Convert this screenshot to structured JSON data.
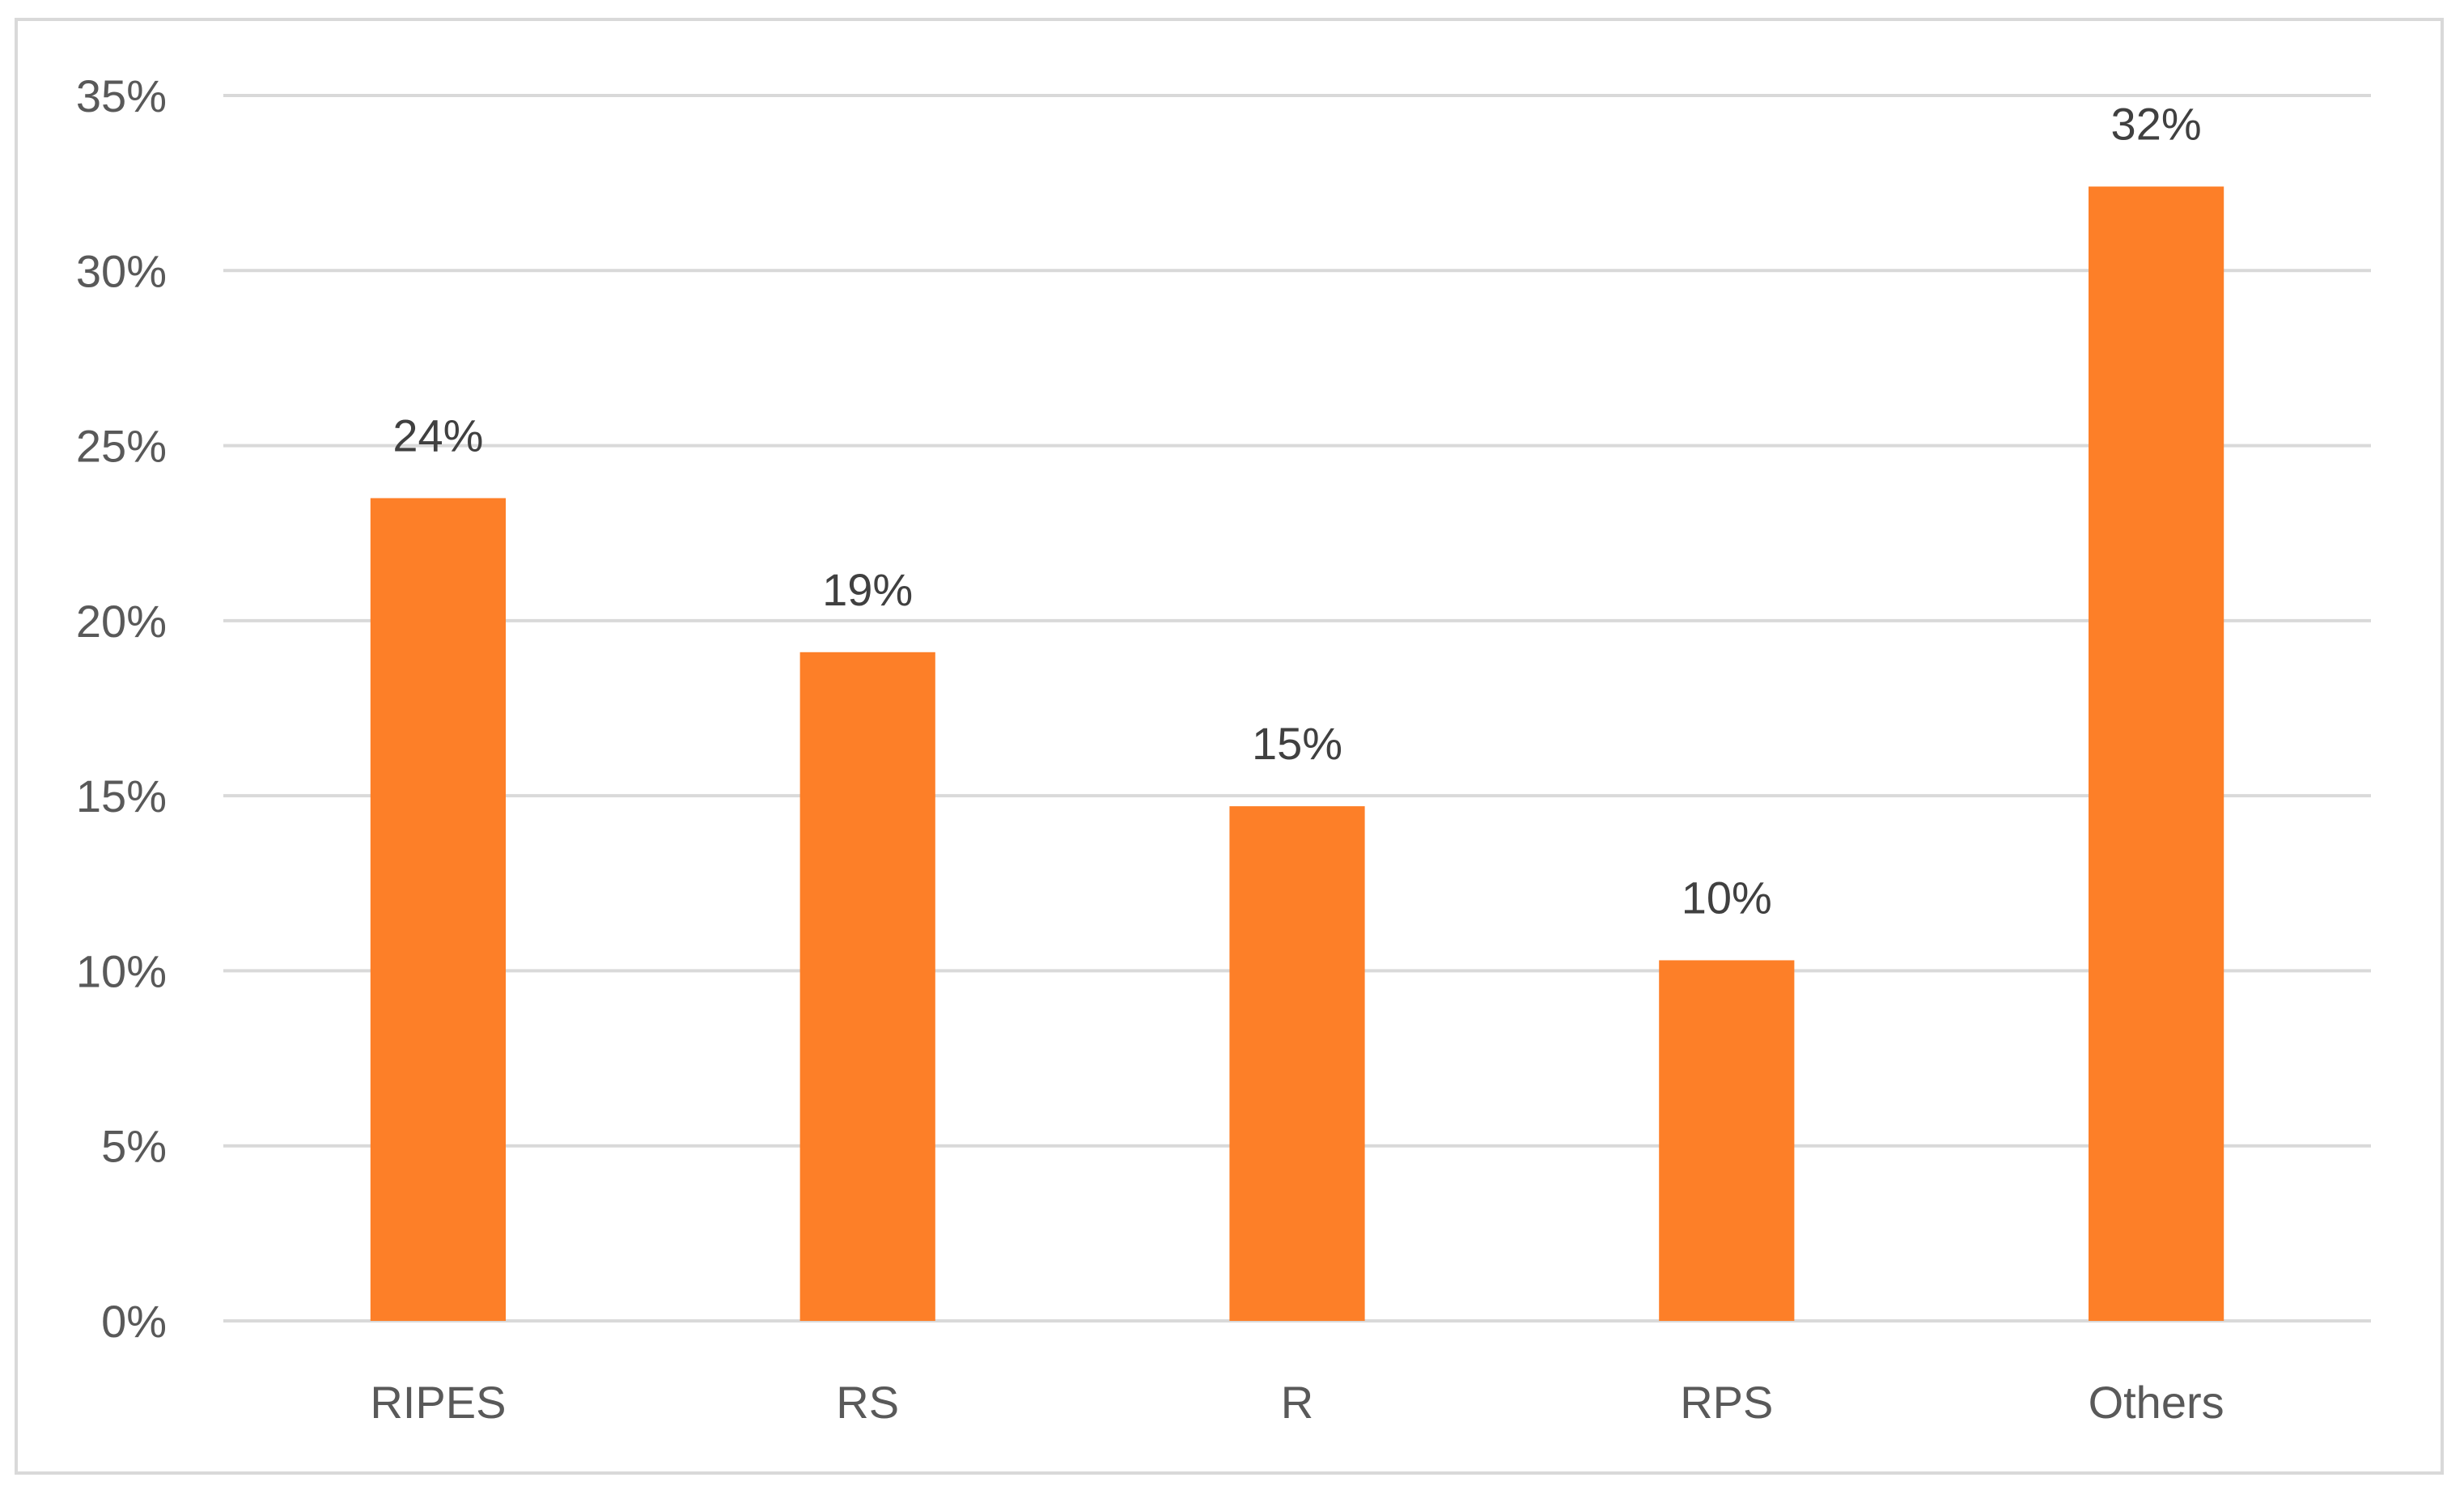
{
  "chart_data": {
    "type": "bar",
    "categories": [
      "RIPES",
      "RS",
      "R",
      "RPS",
      "Others"
    ],
    "values": [
      23.5,
      19.1,
      14.7,
      10.3,
      32.4
    ],
    "data_labels": [
      "24%",
      "19%",
      "15%",
      "10%",
      "32%"
    ],
    "y_ticks": [
      0,
      5,
      10,
      15,
      20,
      25,
      30,
      35
    ],
    "y_tick_labels": [
      "0%",
      "5%",
      "10%",
      "15%",
      "20%",
      "25%",
      "30%",
      "35%"
    ],
    "ylim": [
      0,
      35
    ],
    "grid": true,
    "legend": "none",
    "title": "",
    "xlabel": "",
    "ylabel": "",
    "colors": {
      "bar": "#fd7f28",
      "grid": "#d9d9d9",
      "frame": "#d9d9d9"
    }
  }
}
